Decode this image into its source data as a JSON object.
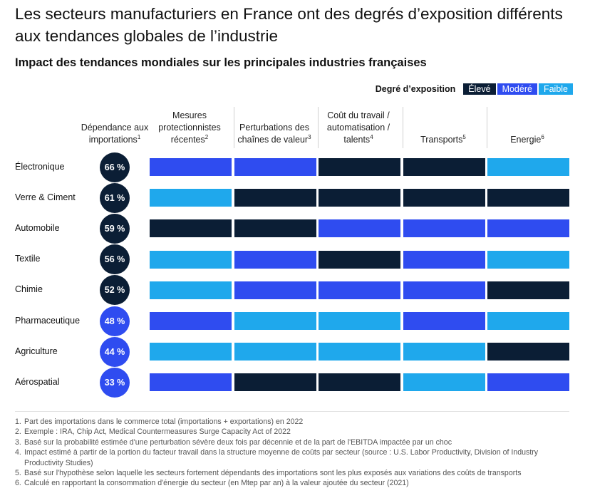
{
  "title": "Les secteurs manufacturiers en France ont des degrés d’exposition différents aux tendances globales de l’industrie",
  "subtitle": "Impact des tendances mondiales sur les principales industries françaises",
  "legend": {
    "title": "Degré d’exposition",
    "items": [
      {
        "key": "eleve",
        "label": "Élevé",
        "color": "#0b1e35"
      },
      {
        "key": "modere",
        "label": "Modéré",
        "color": "#2f4cf0"
      },
      {
        "key": "faible",
        "label": "Faible",
        "color": "#1fa8ec"
      }
    ]
  },
  "columns": [
    {
      "lines": [
        "Dépendance aux",
        "importations"
      ],
      "sup": "1"
    },
    {
      "lines": [
        "Mesures",
        "protectionnistes",
        "récentes"
      ],
      "sup": "2"
    },
    {
      "lines": [
        "Perturbations des",
        "chaînes de valeur"
      ],
      "sup": "3"
    },
    {
      "lines": [
        "Coût du travail /",
        "automatisation /",
        "talents"
      ],
      "sup": "4"
    },
    {
      "lines": [
        "Transports"
      ],
      "sup": "5"
    },
    {
      "lines": [
        "Energie"
      ],
      "sup": "6"
    }
  ],
  "chart_data": {
    "type": "table",
    "rows": [
      {
        "sector": "Électronique",
        "import_dependence": "66 %",
        "import_level": "eleve",
        "levels": [
          "modere",
          "modere",
          "eleve",
          "eleve",
          "faible"
        ]
      },
      {
        "sector": "Verre & Ciment",
        "import_dependence": "61 %",
        "import_level": "eleve",
        "levels": [
          "faible",
          "eleve",
          "eleve",
          "eleve",
          "eleve"
        ]
      },
      {
        "sector": "Automobile",
        "import_dependence": "59 %",
        "import_level": "eleve",
        "levels": [
          "eleve",
          "eleve",
          "modere",
          "modere",
          "modere"
        ]
      },
      {
        "sector": "Textile",
        "import_dependence": "56 %",
        "import_level": "eleve",
        "levels": [
          "faible",
          "modere",
          "eleve",
          "modere",
          "faible"
        ]
      },
      {
        "sector": "Chimie",
        "import_dependence": "52 %",
        "import_level": "eleve",
        "levels": [
          "faible",
          "modere",
          "modere",
          "modere",
          "eleve"
        ]
      },
      {
        "sector": "Pharmaceutique",
        "import_dependence": "48 %",
        "import_level": "modere",
        "levels": [
          "modere",
          "faible",
          "faible",
          "modere",
          "faible"
        ]
      },
      {
        "sector": "Agriculture",
        "import_dependence": "44 %",
        "import_level": "modere",
        "levels": [
          "faible",
          "faible",
          "faible",
          "faible",
          "eleve"
        ]
      },
      {
        "sector": "Aérospatial",
        "import_dependence": "33 %",
        "import_level": "modere",
        "levels": [
          "modere",
          "eleve",
          "eleve",
          "faible",
          "modere"
        ]
      }
    ]
  },
  "footnotes": [
    {
      "num": "1.",
      "text": "Part des importations dans le commerce total (importations + exportations) en 2022"
    },
    {
      "num": "2.",
      "text": "Exemple : IRA, Chip Act, Medical Countermeasures Surge Capacity Act of 2022"
    },
    {
      "num": "3.",
      "text": "Basé sur la probabilité estimée d'une perturbation sévère deux fois par décennie et de la part de l'EBITDA impactée par un choc"
    },
    {
      "num": "4.",
      "text": "Impact estimé à partir de la portion du facteur travail dans la structure moyenne de coûts par secteur (source : U.S. Labor Productivity, Division of Industry Productivity Studies)"
    },
    {
      "num": "5.",
      "text": "Basé sur l'hypothèse selon laquelle les secteurs fortement dépendants des importations sont les plus exposés aux variations des coûts de transports"
    },
    {
      "num": "6.",
      "text": "Calculé en rapportant la consommation d'énergie du secteur (en Mtep par an) à la valeur ajoutée du secteur (2021)"
    }
  ]
}
